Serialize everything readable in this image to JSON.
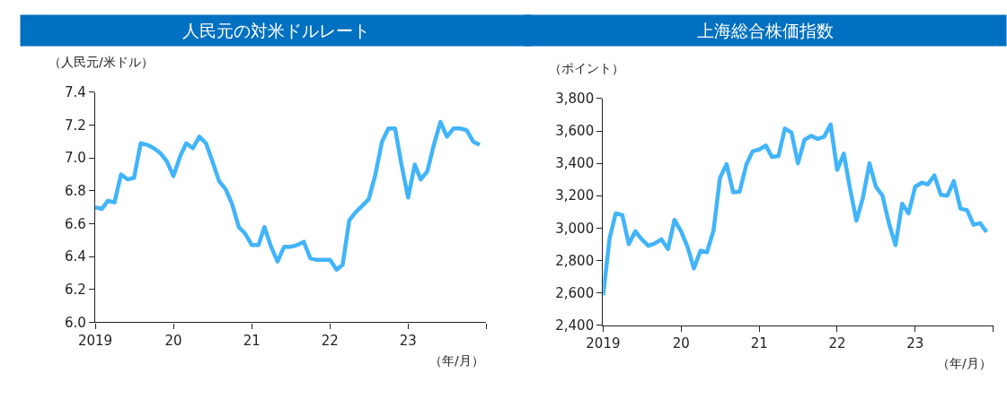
{
  "chart_data": [
    {
      "type": "line",
      "title": "人民元の対米ドルレート",
      "ylabel": "（人民元/米ドル）",
      "xlabel": "（年/月）",
      "x": [
        "2019-01",
        "2019-02",
        "2019-03",
        "2019-04",
        "2019-05",
        "2019-06",
        "2019-07",
        "2019-08",
        "2019-09",
        "2019-10",
        "2019-11",
        "2019-12",
        "2020-01",
        "2020-02",
        "2020-03",
        "2020-04",
        "2020-05",
        "2020-06",
        "2020-07",
        "2020-08",
        "2020-09",
        "2020-10",
        "2020-11",
        "2020-12",
        "2021-01",
        "2021-02",
        "2021-03",
        "2021-04",
        "2021-05",
        "2021-06",
        "2021-07",
        "2021-08",
        "2021-09",
        "2021-10",
        "2021-11",
        "2021-12",
        "2022-01",
        "2022-02",
        "2022-03",
        "2022-04",
        "2022-05",
        "2022-06",
        "2022-07",
        "2022-08",
        "2022-09",
        "2022-10",
        "2022-11",
        "2022-12",
        "2023-01",
        "2023-02",
        "2023-03",
        "2023-04",
        "2023-05",
        "2023-06",
        "2023-07",
        "2023-08",
        "2023-09",
        "2023-10",
        "2023-11",
        "2023-12"
      ],
      "series": [
        {
          "color": "#41b4fa",
          "values": [
            6.7,
            6.69,
            6.74,
            6.73,
            6.9,
            6.87,
            6.88,
            7.09,
            7.08,
            7.06,
            7.03,
            6.98,
            6.89,
            7.01,
            7.09,
            7.06,
            7.13,
            7.09,
            6.98,
            6.86,
            6.81,
            6.72,
            6.58,
            6.54,
            6.47,
            6.47,
            6.58,
            6.46,
            6.37,
            6.46,
            6.46,
            6.47,
            6.49,
            6.39,
            6.38,
            6.38,
            6.38,
            6.32,
            6.35,
            6.62,
            6.67,
            6.71,
            6.75,
            6.9,
            7.1,
            7.18,
            7.18,
            6.96,
            6.76,
            6.96,
            6.87,
            6.92,
            7.08,
            7.22,
            7.13,
            7.18,
            7.18,
            7.17,
            7.1,
            7.08
          ]
        }
      ],
      "xlim": [
        "2019-01",
        "2024-01"
      ],
      "xticks": [
        {
          "value": "2019-01",
          "label": "2019"
        },
        {
          "value": "2020-01",
          "label": "20"
        },
        {
          "value": "2021-01",
          "label": "21"
        },
        {
          "value": "2022-01",
          "label": "22"
        },
        {
          "value": "2023-01",
          "label": "23"
        },
        {
          "value": "2024-01",
          "label": null
        }
      ],
      "ylim": [
        6.0,
        7.4
      ],
      "yticks": [
        {
          "value": 6.0,
          "label": "6.0"
        },
        {
          "value": 6.2,
          "label": "6.2"
        },
        {
          "value": 6.4,
          "label": "6.4"
        },
        {
          "value": 6.6,
          "label": "6.6"
        },
        {
          "value": 6.8,
          "label": "6.8"
        },
        {
          "value": 7.0,
          "label": "7.0"
        },
        {
          "value": 7.2,
          "label": "7.2"
        },
        {
          "value": 7.4,
          "label": "7.4"
        }
      ],
      "marker": "none",
      "line_style": "solid"
    },
    {
      "type": "line",
      "title": "上海総合株価指数",
      "ylabel": "（ポイント）",
      "xlabel": "（年/月）",
      "x": [
        "2019-01",
        "2019-02",
        "2019-03",
        "2019-04",
        "2019-05",
        "2019-06",
        "2019-07",
        "2019-08",
        "2019-09",
        "2019-10",
        "2019-11",
        "2019-12",
        "2020-01",
        "2020-02",
        "2020-03",
        "2020-04",
        "2020-05",
        "2020-06",
        "2020-07",
        "2020-08",
        "2020-09",
        "2020-10",
        "2020-11",
        "2020-12",
        "2021-01",
        "2021-02",
        "2021-03",
        "2021-04",
        "2021-05",
        "2021-06",
        "2021-07",
        "2021-08",
        "2021-09",
        "2021-10",
        "2021-11",
        "2021-12",
        "2022-01",
        "2022-02",
        "2022-03",
        "2022-04",
        "2022-05",
        "2022-06",
        "2022-07",
        "2022-08",
        "2022-09",
        "2022-10",
        "2022-11",
        "2022-12",
        "2023-01",
        "2023-02",
        "2023-03",
        "2023-04",
        "2023-05",
        "2023-06",
        "2023-07",
        "2023-08",
        "2023-09",
        "2023-10",
        "2023-11",
        "2023-12"
      ],
      "series": [
        {
          "color": "#41b4fa",
          "values": [
            2585,
            2940,
            3090,
            3080,
            2900,
            2980,
            2930,
            2890,
            2905,
            2930,
            2870,
            3050,
            2980,
            2880,
            2750,
            2860,
            2850,
            2985,
            3310,
            3395,
            3220,
            3225,
            3390,
            3475,
            3485,
            3510,
            3440,
            3445,
            3615,
            3590,
            3400,
            3545,
            3570,
            3550,
            3565,
            3640,
            3360,
            3460,
            3250,
            3045,
            3185,
            3400,
            3255,
            3200,
            3025,
            2895,
            3150,
            3090,
            3255,
            3280,
            3270,
            3325,
            3205,
            3200,
            3290,
            3120,
            3110,
            3020,
            3030,
            2975
          ]
        }
      ],
      "xlim": [
        "2019-01",
        "2024-01"
      ],
      "xticks": [
        {
          "value": "2019-01",
          "label": "2019"
        },
        {
          "value": "2020-01",
          "label": "20"
        },
        {
          "value": "2021-01",
          "label": "21"
        },
        {
          "value": "2022-01",
          "label": "22"
        },
        {
          "value": "2023-01",
          "label": "23"
        },
        {
          "value": "2024-01",
          "label": null
        }
      ],
      "ylim": [
        2400,
        3800
      ],
      "yticks": [
        {
          "value": 2400,
          "label": "2,400"
        },
        {
          "value": 2600,
          "label": "2,600"
        },
        {
          "value": 2800,
          "label": "2,800"
        },
        {
          "value": 3000,
          "label": "3,000"
        },
        {
          "value": 3200,
          "label": "3,200"
        },
        {
          "value": 3400,
          "label": "3,400"
        },
        {
          "value": 3600,
          "label": "3,600"
        },
        {
          "value": 3800,
          "label": "3,800"
        }
      ],
      "marker": "none",
      "line_style": "solid"
    }
  ]
}
